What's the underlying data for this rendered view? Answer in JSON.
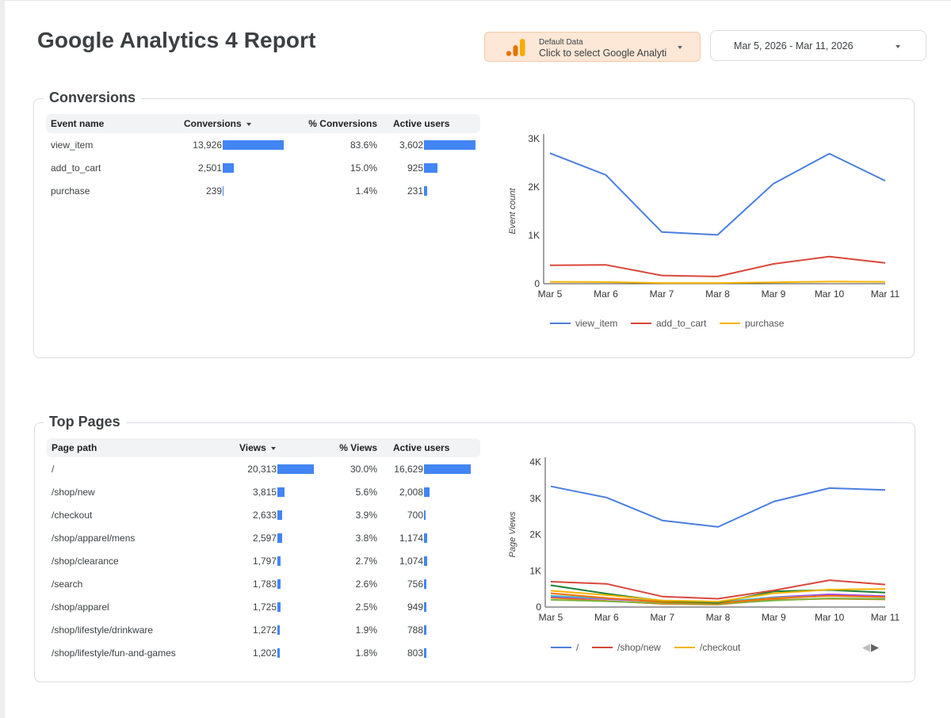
{
  "report": {
    "title": "Google Analytics 4 Report"
  },
  "data_source": {
    "label_small": "Default Data",
    "label_main": "Click to select Google Analyti",
    "icon": "analytics-logo-icon",
    "accent": "#f9ab00"
  },
  "date_range": {
    "text": "Mar 5, 2026 - Mar 11, 2026"
  },
  "conversions": {
    "section_title": "Conversions",
    "table": {
      "headers": [
        "Event name",
        "Conversions",
        "% Conversions",
        "Active users"
      ],
      "sorted_column": "Conversions",
      "rows": [
        {
          "name": "view_item",
          "count": "13,926",
          "count_value": 13926,
          "pct": "83.6%",
          "users": "3,602",
          "users_value": 3602
        },
        {
          "name": "add_to_cart",
          "count": "2,501",
          "count_value": 2501,
          "pct": "15.0%",
          "users": "925",
          "users_value": 925
        },
        {
          "name": "purchase",
          "count": "239",
          "count_value": 239,
          "pct": "1.4%",
          "users": "231",
          "users_value": 231
        }
      ]
    }
  },
  "top_pages": {
    "section_title": "Top Pages",
    "table": {
      "headers": [
        "Page path",
        "Views",
        "% Views",
        "Active users"
      ],
      "sorted_column": "Views",
      "rows": [
        {
          "name": "/",
          "count": "20,313",
          "count_value": 20313,
          "pct": "30.0%",
          "users": "16,629",
          "users_value": 16629
        },
        {
          "name": "/shop/new",
          "count": "3,815",
          "count_value": 3815,
          "pct": "5.6%",
          "users": "2,008",
          "users_value": 2008
        },
        {
          "name": "/checkout",
          "count": "2,633",
          "count_value": 2633,
          "pct": "3.9%",
          "users": "700",
          "users_value": 700
        },
        {
          "name": "/shop/apparel/mens",
          "count": "2,597",
          "count_value": 2597,
          "pct": "3.8%",
          "users": "1,174",
          "users_value": 1174
        },
        {
          "name": "/shop/clearance",
          "count": "1,797",
          "count_value": 1797,
          "pct": "2.7%",
          "users": "1,074",
          "users_value": 1074
        },
        {
          "name": "/search",
          "count": "1,783",
          "count_value": 1783,
          "pct": "2.6%",
          "users": "756",
          "users_value": 756
        },
        {
          "name": "/shop/apparel",
          "count": "1,725",
          "count_value": 1725,
          "pct": "2.5%",
          "users": "949",
          "users_value": 949
        },
        {
          "name": "/shop/lifestyle/drinkware",
          "count": "1,272",
          "count_value": 1272,
          "pct": "1.9%",
          "users": "788",
          "users_value": 788
        },
        {
          "name": "/shop/lifestyle/fun-and-games",
          "count": "1,202",
          "count_value": 1202,
          "pct": "1.8%",
          "users": "803",
          "users_value": 803
        }
      ]
    },
    "legend_nav": {
      "prev_icon": "triangle-left-icon",
      "next_icon": "triangle-right-icon"
    }
  },
  "chart_data": [
    {
      "id": "conversions-chart",
      "type": "line",
      "title": "",
      "xlabel": "",
      "ylabel": "Event count",
      "x": [
        "Mar 5",
        "Mar 6",
        "Mar 7",
        "Mar 8",
        "Mar 9",
        "Mar 10",
        "Mar 11"
      ],
      "ylim": [
        0,
        3000
      ],
      "yticks": [
        0,
        1000,
        2000,
        3000
      ],
      "ytick_labels": [
        "0",
        "1K",
        "2K",
        "3K"
      ],
      "legend_position": "bottom",
      "series": [
        {
          "name": "view_item",
          "color": "#4a7fe0",
          "values": [
            2700,
            2250,
            1070,
            1010,
            2070,
            2690,
            2130
          ]
        },
        {
          "name": "add_to_cart",
          "color": "#d9473b",
          "values": [
            380,
            390,
            170,
            150,
            410,
            560,
            430
          ]
        },
        {
          "name": "purchase",
          "color": "#f5b400",
          "values": [
            40,
            35,
            15,
            15,
            30,
            45,
            40
          ]
        }
      ]
    },
    {
      "id": "pages-chart",
      "type": "line",
      "title": "",
      "xlabel": "",
      "ylabel": "Page Views",
      "x": [
        "Mar 5",
        "Mar 6",
        "Mar 7",
        "Mar 8",
        "Mar 9",
        "Mar 10",
        "Mar 11"
      ],
      "ylim": [
        0,
        4000
      ],
      "yticks": [
        0,
        1000,
        2000,
        3000,
        4000
      ],
      "ytick_labels": [
        "0",
        "1K",
        "2K",
        "3K",
        "4K"
      ],
      "legend_position": "bottom",
      "legend_items": [
        "/",
        "/shop/new",
        "/checkout"
      ],
      "series": [
        {
          "name": "/",
          "color": "#4a7fe0",
          "values": [
            3330,
            3020,
            2390,
            2210,
            2910,
            3280,
            3230
          ]
        },
        {
          "name": "/shop/new",
          "color": "#d9473b",
          "values": [
            700,
            640,
            290,
            230,
            460,
            740,
            620
          ]
        },
        {
          "name": "/checkout",
          "color": "#f5b400",
          "values": [
            450,
            330,
            180,
            150,
            380,
            480,
            500
          ]
        },
        {
          "name": "/shop/apparel/mens",
          "color": "#188038",
          "values": [
            600,
            370,
            170,
            120,
            430,
            470,
            400
          ]
        },
        {
          "name": "/shop/clearance",
          "color": "#ff6d00",
          "values": [
            380,
            250,
            140,
            110,
            240,
            310,
            280
          ]
        },
        {
          "name": "/search",
          "color": "#46bdc6",
          "values": [
            310,
            240,
            170,
            150,
            260,
            310,
            270
          ]
        },
        {
          "name": "/shop/apparel",
          "color": "#a142f4",
          "values": [
            290,
            220,
            150,
            130,
            270,
            350,
            300
          ]
        },
        {
          "name": "/shop/lifestyle/drinkware",
          "color": "#7cb342",
          "values": [
            200,
            160,
            110,
            90,
            180,
            240,
            220
          ]
        },
        {
          "name": "/shop/lifestyle/fun-and-games",
          "color": "#e8710a",
          "values": [
            260,
            170,
            90,
            70,
            200,
            230,
            210
          ]
        }
      ]
    }
  ]
}
